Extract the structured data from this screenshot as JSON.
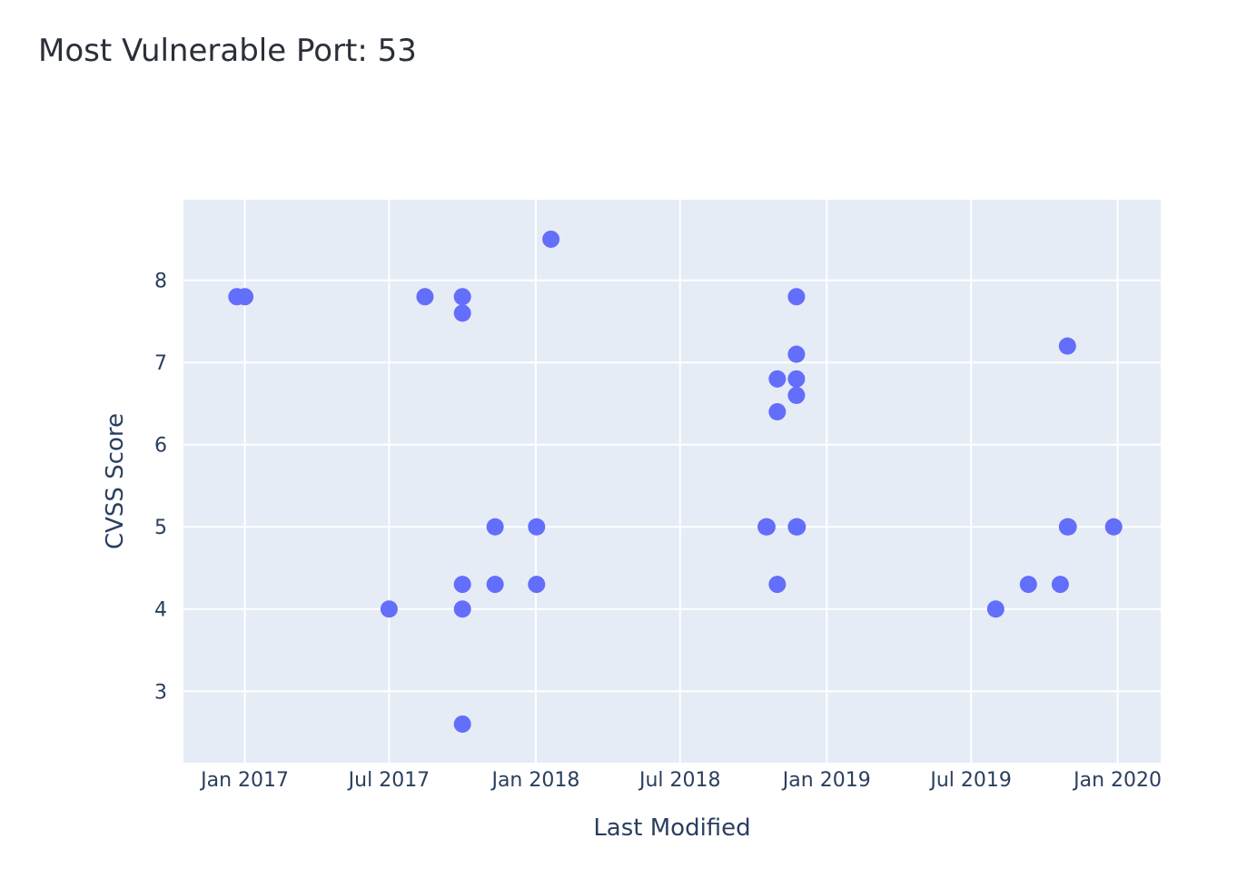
{
  "chart_data": {
    "type": "scatter",
    "title": "Most Vulnerable Port: 53",
    "xlabel": "Last Modified",
    "ylabel": "CVSS Score",
    "x_type": "date",
    "xlim": [
      "2016-10-16",
      "2020-02-24"
    ],
    "ylim": [
      2.13,
      8.98
    ],
    "x_ticks": [
      {
        "date": "2017-01-01",
        "label": "Jan 2017"
      },
      {
        "date": "2017-07-01",
        "label": "Jul 2017"
      },
      {
        "date": "2018-01-01",
        "label": "Jan 2018"
      },
      {
        "date": "2018-07-01",
        "label": "Jul 2018"
      },
      {
        "date": "2019-01-01",
        "label": "Jan 2019"
      },
      {
        "date": "2019-07-01",
        "label": "Jul 2019"
      },
      {
        "date": "2020-01-01",
        "label": "Jan 2020"
      }
    ],
    "y_ticks": [
      3,
      4,
      5,
      6,
      7,
      8
    ],
    "grid": true,
    "marker_color": "#636efa",
    "plot_bg": "#e5ecf6",
    "grid_color": "#ffffff",
    "series": [
      {
        "points": [
          {
            "x": "2016-12-22",
            "y": 7.8
          },
          {
            "x": "2017-01-01",
            "y": 7.8
          },
          {
            "x": "2017-07-01",
            "y": 4.0
          },
          {
            "x": "2017-08-15",
            "y": 7.8
          },
          {
            "x": "2017-10-01",
            "y": 7.8
          },
          {
            "x": "2017-10-01",
            "y": 7.6
          },
          {
            "x": "2017-10-01",
            "y": 4.3
          },
          {
            "x": "2017-10-01",
            "y": 4.0
          },
          {
            "x": "2017-10-01",
            "y": 2.6
          },
          {
            "x": "2017-11-11",
            "y": 5.0
          },
          {
            "x": "2017-11-11",
            "y": 4.3
          },
          {
            "x": "2018-01-02",
            "y": 5.0
          },
          {
            "x": "2018-01-02",
            "y": 4.3
          },
          {
            "x": "2018-01-20",
            "y": 8.5
          },
          {
            "x": "2018-10-17",
            "y": 5.0
          },
          {
            "x": "2018-10-18",
            "y": 5.0
          },
          {
            "x": "2018-10-31",
            "y": 6.8
          },
          {
            "x": "2018-10-31",
            "y": 6.4
          },
          {
            "x": "2018-10-31",
            "y": 4.3
          },
          {
            "x": "2018-11-24",
            "y": 7.8
          },
          {
            "x": "2018-11-24",
            "y": 7.1
          },
          {
            "x": "2018-11-24",
            "y": 6.8
          },
          {
            "x": "2018-11-24",
            "y": 6.6
          },
          {
            "x": "2018-11-24",
            "y": 5.0
          },
          {
            "x": "2018-11-25",
            "y": 5.0
          },
          {
            "x": "2019-08-01",
            "y": 4.0
          },
          {
            "x": "2019-09-11",
            "y": 4.3
          },
          {
            "x": "2019-10-21",
            "y": 4.3
          },
          {
            "x": "2019-10-30",
            "y": 7.2
          },
          {
            "x": "2019-10-30",
            "y": 5.0
          },
          {
            "x": "2019-10-31",
            "y": 5.0
          },
          {
            "x": "2019-12-27",
            "y": 5.0
          }
        ]
      }
    ]
  }
}
